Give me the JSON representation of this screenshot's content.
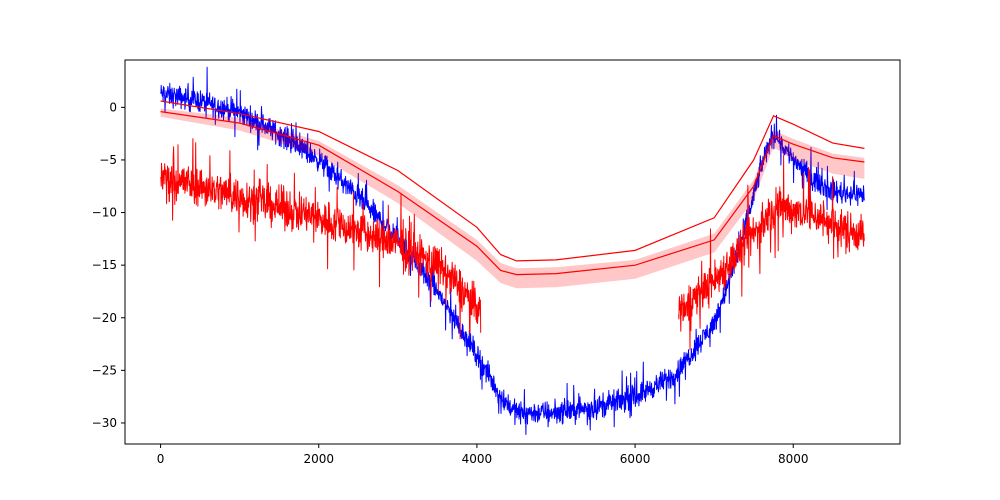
{
  "chart_data": {
    "type": "line",
    "title": "",
    "xlabel": "",
    "ylabel": "",
    "xlim": [
      -450,
      9350
    ],
    "ylim": [
      -32,
      4.5
    ],
    "xticks": [
      0,
      2000,
      4000,
      6000,
      8000
    ],
    "xtick_labels": [
      "0",
      "2000",
      "4000",
      "6000",
      "8000"
    ],
    "yticks": [
      0,
      -5,
      -10,
      -15,
      -20,
      -25,
      -30
    ],
    "ytick_labels": [
      "0",
      "−5",
      "−10",
      "−15",
      "−20",
      "−25",
      "−30"
    ],
    "grid": false,
    "legend": "none",
    "series": [
      {
        "style": "noisy-line",
        "color": "#0000ff",
        "noise": 0.9,
        "x": [
          0,
          500,
          1000,
          1500,
          2000,
          2500,
          3000,
          3500,
          4000,
          4300,
          4500,
          5000,
          5500,
          6000,
          6500,
          7000,
          7300,
          7600,
          7750,
          7900,
          8200,
          8500,
          8900
        ],
        "y": [
          1.3,
          0.6,
          -0.5,
          -2.5,
          -5,
          -8.5,
          -12.5,
          -17.5,
          -23.5,
          -27.5,
          -29,
          -29,
          -28.5,
          -27.5,
          -25.5,
          -20.5,
          -14,
          -5.5,
          -2.3,
          -4,
          -6.5,
          -8,
          -8.3
        ]
      },
      {
        "style": "noisy-line",
        "color": "#ff0000",
        "noise": 1.6,
        "x": [
          0,
          500,
          1000,
          1500,
          2000,
          2500,
          3000,
          3500,
          4000,
          4050,
          null,
          6550,
          6600,
          7000,
          7500,
          7800,
          8200,
          8600,
          8900
        ],
        "y": [
          -6.5,
          -7.5,
          -8.5,
          -9.5,
          -10.5,
          -11.8,
          -13,
          -15,
          -18.8,
          -19.5,
          null,
          -19.5,
          -19,
          -16.5,
          -12,
          -9.5,
          -10,
          -11.5,
          -12
        ]
      },
      {
        "style": "band",
        "color": "#ff0000",
        "band_opacity": 0.22,
        "x": [
          0,
          1000,
          2000,
          3000,
          4000,
          4300,
          4500,
          5000,
          6000,
          7000,
          7500,
          7750,
          8000,
          8500,
          8900
        ],
        "y": [
          -0.4,
          -1.5,
          -3.6,
          -8,
          -13.2,
          -15.5,
          -15.9,
          -15.8,
          -15,
          -12.6,
          -7.5,
          -2.7,
          -3.5,
          -4.8,
          -5.2
        ],
        "upper": [
          -0.1,
          -1,
          -3.2,
          -7.4,
          -12.6,
          -14.8,
          -15.3,
          -15.2,
          -14.5,
          -12,
          -6.9,
          -2.2,
          -3,
          -4.4,
          -4.8
        ],
        "lower": [
          -0.9,
          -2.2,
          -4.6,
          -9.1,
          -14.6,
          -16.7,
          -17.2,
          -17.1,
          -16.3,
          -13.8,
          -8.8,
          -3.8,
          -5,
          -6.3,
          -6.8
        ]
      },
      {
        "style": "line",
        "color": "#ff0000",
        "x": [
          0,
          1000,
          2000,
          3000,
          4000,
          4300,
          4500,
          5000,
          6000,
          7000,
          7500,
          7750,
          8000,
          8500,
          8900
        ],
        "y": [
          0.6,
          -0.6,
          -2.3,
          -6,
          -11.4,
          -14,
          -14.6,
          -14.5,
          -13.6,
          -10.5,
          -5,
          -0.8,
          -1.6,
          -3.4,
          -3.9
        ]
      }
    ]
  }
}
